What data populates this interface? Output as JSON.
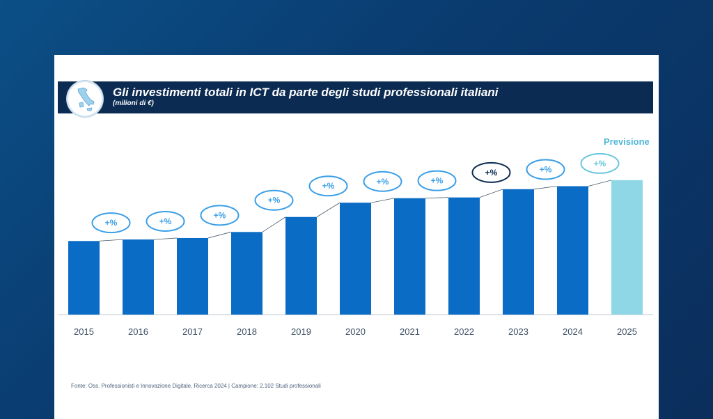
{
  "title": "Gli investimenti totali in ICT da parte degli studi professionali italiani",
  "subtitle": "(milioni di €)",
  "forecast_label": "Previsione",
  "source": "Fonte: Oss. Professionisti e Innovazione Digitale, Ricerca 2024 | Campione: 2.102 Studi professionali",
  "icon": "italy-map-icon",
  "colors": {
    "background": "#0a3a6e",
    "title_bar": "#0c2b52",
    "bar": "#0a6cc4",
    "bar_forecast": "#8fd6e6",
    "bubble_default": "#3a9ee8",
    "bubble_2023": "#0c2b52",
    "bubble_2025": "#69c6dd",
    "connector": "#4a5a6a",
    "axis": "#bfc7cf",
    "tick_text": "#3d4e63"
  },
  "chart_data": {
    "type": "bar",
    "categories": [
      "2015",
      "2016",
      "2017",
      "2018",
      "2019",
      "2020",
      "2021",
      "2022",
      "2023",
      "2024",
      "2025"
    ],
    "values": [
      98,
      100,
      102,
      110,
      130,
      149,
      155,
      156,
      167,
      171,
      179
    ],
    "forecast_categories": [
      "2025"
    ],
    "growth_labels": [
      "+%",
      "+%",
      "+%",
      "+%",
      "+%",
      "+%",
      "+%",
      "+%",
      "+%",
      "+%"
    ],
    "ylim": [
      0,
      190
    ],
    "grid": false,
    "xlabel": "",
    "ylabel": ""
  }
}
